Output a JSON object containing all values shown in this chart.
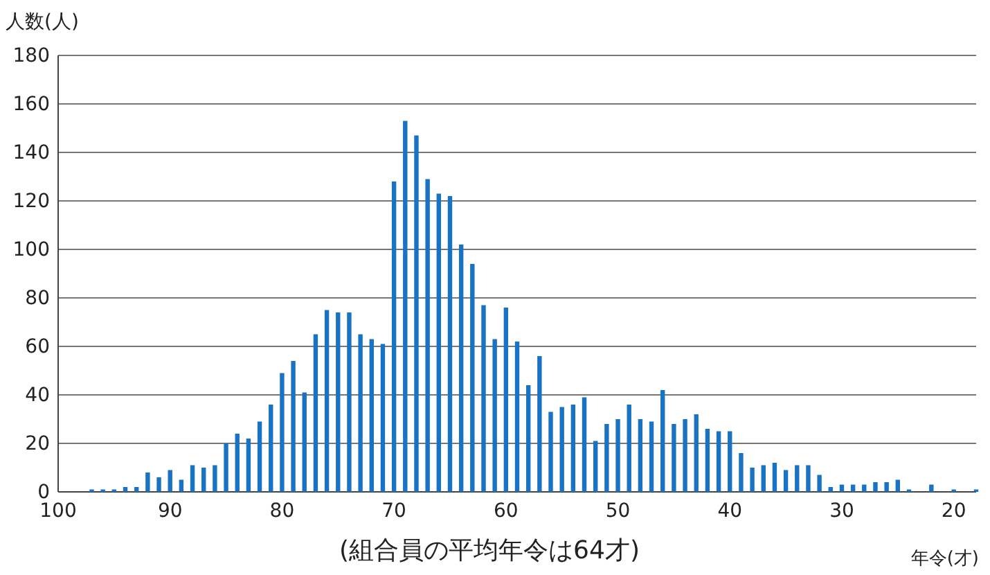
{
  "chart_data": {
    "type": "bar",
    "ylabel": "人数(人)",
    "xlabel": "年令(才)",
    "annotations": [
      "(組合員の平均年令は64才)"
    ],
    "x": [
      97,
      96,
      95,
      94,
      93,
      92,
      91,
      90,
      89,
      88,
      87,
      86,
      85,
      84,
      83,
      82,
      81,
      80,
      79,
      78,
      77,
      76,
      75,
      74,
      73,
      72,
      71,
      70,
      69,
      68,
      67,
      66,
      65,
      64,
      63,
      62,
      61,
      60,
      59,
      58,
      57,
      56,
      55,
      54,
      53,
      52,
      51,
      50,
      49,
      48,
      47,
      46,
      45,
      44,
      43,
      42,
      41,
      40,
      39,
      38,
      37,
      36,
      35,
      34,
      33,
      32,
      31,
      30,
      29,
      28,
      27,
      26,
      25,
      24,
      23,
      22,
      21,
      20,
      19,
      18
    ],
    "values": [
      1,
      1,
      1,
      2,
      2,
      8,
      6,
      9,
      5,
      11,
      10,
      11,
      20,
      24,
      22,
      29,
      36,
      49,
      54,
      41,
      65,
      75,
      74,
      74,
      65,
      63,
      61,
      128,
      153,
      147,
      129,
      123,
      122,
      102,
      94,
      77,
      63,
      76,
      62,
      44,
      56,
      33,
      35,
      36,
      39,
      21,
      28,
      30,
      36,
      30,
      29,
      42,
      28,
      30,
      32,
      26,
      25,
      25,
      16,
      10,
      11,
      12,
      9,
      11,
      11,
      7,
      2,
      3,
      3,
      3,
      4,
      4,
      5,
      1,
      null,
      3,
      null,
      1,
      null,
      1
    ],
    "color": "#1a73c2",
    "xlim": [
      100,
      18
    ],
    "xticks": [
      100,
      90,
      80,
      70,
      60,
      50,
      40,
      30,
      20
    ],
    "ylim": [
      0,
      180
    ],
    "yticks": [
      0,
      20,
      40,
      60,
      80,
      100,
      120,
      140,
      160,
      180
    ],
    "grid": "y"
  }
}
